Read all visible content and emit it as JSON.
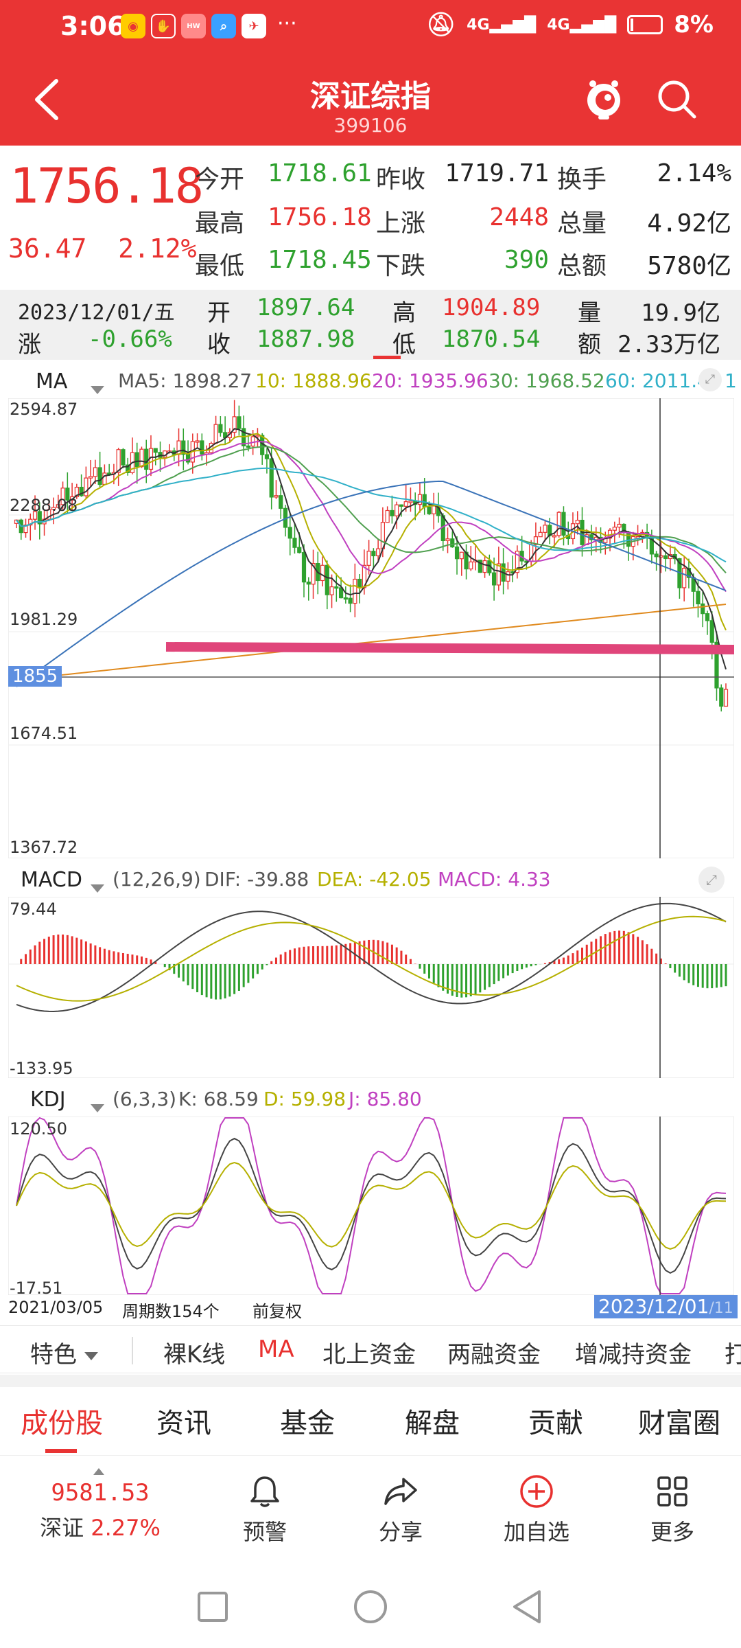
{
  "status_bar": {
    "time": "3:06",
    "battery": "8%",
    "signal1": "4G",
    "signal2": "4G",
    "dots": "···"
  },
  "header": {
    "title": "深证综指",
    "code": "399106"
  },
  "quote": {
    "price": "1756.18",
    "change": "36.47",
    "change_pct": "2.12%",
    "open_label": "今开",
    "open": "1718.61",
    "prev_close_label": "昨收",
    "prev_close": "1719.71",
    "turnover_label": "换手",
    "turnover": "2.14%",
    "high_label": "最高",
    "high": "1756.18",
    "up_label": "上涨",
    "up": "2448",
    "volume_label": "总量",
    "volume": "4.92亿",
    "low_label": "最低",
    "low": "1718.45",
    "down_label": "下跌",
    "down": "390",
    "amount_label": "总额",
    "amount": "5780亿"
  },
  "day_info": {
    "date": "2023/12/01/五",
    "chg_label": "涨",
    "chg": "-0.66%",
    "open_label": "开",
    "open": "1897.64",
    "close_label": "收",
    "close": "1887.98",
    "high_label": "高",
    "high": "1904.89",
    "low_label": "低",
    "low": "1870.54",
    "vol_label": "量",
    "vol": "19.9亿",
    "amt_label": "额",
    "amt": "2.33万亿"
  },
  "ma_legend": {
    "name": "MA",
    "ma5": "MA5: 1898.27",
    "ma10": "10: 1888.96",
    "ma20": "20: 1935.96",
    "ma30": "30: 1968.52",
    "ma60": "60: 2011.4",
    "ma_last": "1"
  },
  "macd_legend": {
    "name": "MACD",
    "params": "(12,26,9)",
    "dif": "DIF: -39.88",
    "dea": "DEA: -42.05",
    "macd": "MACD: 4.33"
  },
  "kdj_legend": {
    "name": "KDJ",
    "params": "(6,3,3)",
    "k": "K: 68.59",
    "d": "D: 59.98",
    "j": "J: 85.80"
  },
  "axes": {
    "price_max": "2594.87",
    "price_2": "2288.08",
    "price_3": "1981.29",
    "price_cursor": "1855",
    "price_4": "1674.51",
    "price_min": "1367.72",
    "macd_max": "79.44",
    "macd_min": "-133.95",
    "kdj_max": "120.50",
    "kdj_min": "-17.51",
    "start_date": "2021/03/05",
    "period_count": "周期数154个",
    "adjust": "前复权",
    "cursor_date": "2023/12/01",
    "end_date_partial": "/11"
  },
  "tabs1": [
    "特色",
    "裸K线",
    "MA",
    "北上资金",
    "两融资金",
    "增减持资金",
    "打"
  ],
  "tabs1_active": "MA",
  "tabs2": [
    "成份股",
    "资讯",
    "基金",
    "解盘",
    "贡献",
    "财富圈"
  ],
  "toolbar": {
    "index_value": "9581.53",
    "index_name": "深证",
    "index_pct": "2.27%",
    "alert": "预警",
    "share": "分享",
    "add": "加自选",
    "more": "更多"
  },
  "colors": {
    "brand_red": "#e93434",
    "up_red": "#e8312f",
    "down_green": "#2ea12e",
    "ma5": "#333333",
    "ma10": "#b5b000",
    "ma20": "#c040c0",
    "ma30": "#50a050",
    "ma60": "#30b0c8",
    "ma_long": "#3a73b8",
    "ma_orange": "#e08a1e",
    "support_line": "#e0457a"
  }
}
